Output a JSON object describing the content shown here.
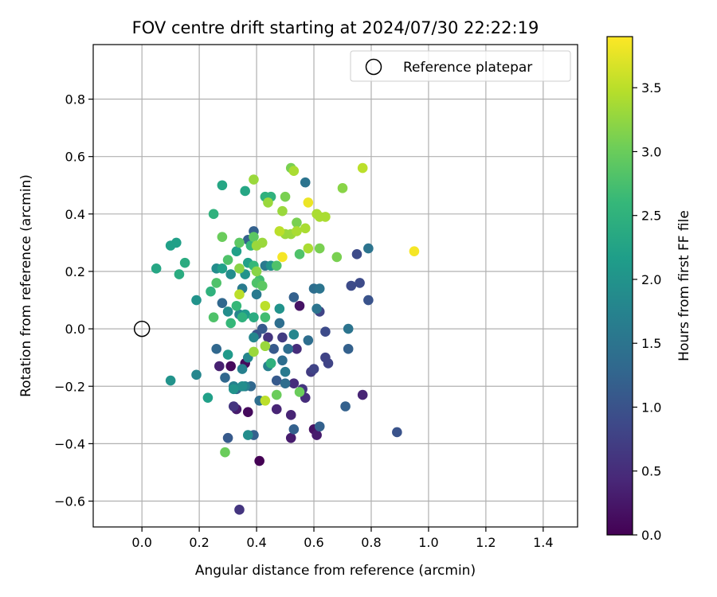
{
  "chart_data": {
    "type": "scatter",
    "title": "FOV centre drift starting at 2024/07/30 22:22:19",
    "xlabel": "Angular distance from reference (arcmin)",
    "ylabel": "Rotation from reference (arcmin)",
    "xlim": [
      -0.17,
      1.52
    ],
    "ylim": [
      -0.69,
      0.99
    ],
    "xticks": [
      "0.0",
      "0.2",
      "0.4",
      "0.6",
      "0.8",
      "1.0",
      "1.2",
      "1.4"
    ],
    "yticks": [
      "−0.6",
      "−0.4",
      "−0.2",
      "0.0",
      "0.2",
      "0.4",
      "0.6",
      "0.8"
    ],
    "xtick_values": [
      0.0,
      0.2,
      0.4,
      0.6,
      0.8,
      1.0,
      1.2,
      1.4
    ],
    "ytick_values": [
      -0.6,
      -0.4,
      -0.2,
      0.0,
      0.2,
      0.4,
      0.6,
      0.8
    ],
    "grid": true,
    "legend": {
      "label": "Reference platepar",
      "placement": "top-right"
    },
    "reference_point": {
      "x": 0.0,
      "y": 0.0
    },
    "colorbar": {
      "label": "Hours from first FF file",
      "range": [
        0.0,
        3.9
      ],
      "ticks": [
        "0.0",
        "0.5",
        "1.0",
        "1.5",
        "2.0",
        "2.5",
        "3.0",
        "3.5"
      ],
      "tick_values": [
        0.0,
        0.5,
        1.0,
        1.5,
        2.0,
        2.5,
        3.0,
        3.5
      ],
      "colormap": "viridis"
    },
    "series": [
      {
        "marker": "filled-circle",
        "points": [
          [
            0.41,
            -0.46,
            0.0
          ],
          [
            0.31,
            -0.13,
            0.1
          ],
          [
            0.36,
            -0.12,
            0.1
          ],
          [
            0.37,
            -0.29,
            0.1
          ],
          [
            0.55,
            0.08,
            0.2
          ],
          [
            0.6,
            -0.35,
            0.2
          ],
          [
            0.33,
            -0.28,
            0.3
          ],
          [
            0.52,
            -0.38,
            0.3
          ],
          [
            0.27,
            -0.13,
            0.35
          ],
          [
            0.61,
            -0.37,
            0.3
          ],
          [
            0.77,
            -0.23,
            0.4
          ],
          [
            0.47,
            -0.28,
            0.4
          ],
          [
            0.52,
            -0.3,
            0.4
          ],
          [
            0.53,
            -0.19,
            0.5
          ],
          [
            0.54,
            -0.07,
            0.5
          ],
          [
            0.44,
            -0.03,
            0.6
          ],
          [
            0.56,
            -0.21,
            0.6
          ],
          [
            0.57,
            -0.24,
            0.5
          ],
          [
            0.32,
            -0.27,
            0.6
          ],
          [
            0.34,
            -0.63,
            0.6
          ],
          [
            0.49,
            -0.03,
            0.7
          ],
          [
            0.59,
            -0.15,
            0.7
          ],
          [
            0.6,
            -0.14,
            0.8
          ],
          [
            0.64,
            -0.1,
            0.8
          ],
          [
            0.65,
            -0.12,
            0.8
          ],
          [
            0.62,
            0.06,
            0.8
          ],
          [
            0.64,
            -0.01,
            0.9
          ],
          [
            0.73,
            0.15,
            0.9
          ],
          [
            0.75,
            0.26,
            0.9
          ],
          [
            0.76,
            0.16,
            0.9
          ],
          [
            0.79,
            0.1,
            1.0
          ],
          [
            0.89,
            -0.36,
            1.0
          ],
          [
            0.4,
            -0.02,
            1.0
          ],
          [
            0.42,
            0.0,
            1.1
          ],
          [
            0.46,
            -0.07,
            1.1
          ],
          [
            0.47,
            -0.18,
            1.1
          ],
          [
            0.3,
            -0.38,
            1.1
          ],
          [
            0.53,
            0.11,
            1.2
          ],
          [
            0.72,
            -0.07,
            1.2
          ],
          [
            0.71,
            -0.27,
            1.2
          ],
          [
            0.62,
            -0.34,
            1.2
          ],
          [
            0.53,
            -0.35,
            1.2
          ],
          [
            0.39,
            0.34,
            1.2
          ],
          [
            0.37,
            0.31,
            1.2
          ],
          [
            0.39,
            -0.37,
            1.2
          ],
          [
            0.29,
            -0.17,
            1.3
          ],
          [
            0.26,
            -0.07,
            1.3
          ],
          [
            0.28,
            0.09,
            1.3
          ],
          [
            0.33,
            -0.21,
            1.3
          ],
          [
            0.38,
            -0.2,
            1.3
          ],
          [
            0.48,
            0.02,
            1.4
          ],
          [
            0.49,
            -0.11,
            1.4
          ],
          [
            0.51,
            -0.07,
            1.4
          ],
          [
            0.5,
            -0.19,
            1.4
          ],
          [
            0.45,
            -0.12,
            1.4
          ],
          [
            0.41,
            -0.25,
            1.4
          ],
          [
            0.58,
            -0.04,
            1.4
          ],
          [
            0.6,
            0.14,
            1.4
          ],
          [
            0.62,
            0.14,
            1.5
          ],
          [
            0.61,
            0.07,
            1.5
          ],
          [
            0.72,
            0.0,
            1.5
          ],
          [
            0.79,
            0.28,
            1.5
          ],
          [
            0.57,
            0.51,
            1.5
          ],
          [
            0.35,
            0.14,
            1.6
          ],
          [
            0.4,
            0.12,
            1.6
          ],
          [
            0.43,
            0.22,
            1.6
          ],
          [
            0.5,
            -0.15,
            1.6
          ],
          [
            0.44,
            -0.13,
            1.7
          ],
          [
            0.35,
            -0.14,
            1.7
          ],
          [
            0.36,
            -0.2,
            1.7
          ],
          [
            0.32,
            -0.2,
            1.7
          ],
          [
            0.19,
            -0.16,
            1.8
          ],
          [
            0.34,
            0.05,
            1.8
          ],
          [
            0.37,
            -0.1,
            1.8
          ],
          [
            0.39,
            -0.03,
            1.8
          ],
          [
            0.53,
            -0.02,
            1.8
          ],
          [
            0.3,
            0.06,
            1.9
          ],
          [
            0.31,
            0.19,
            1.9
          ],
          [
            0.26,
            0.21,
            1.9
          ],
          [
            0.35,
            -0.2,
            1.9
          ],
          [
            0.37,
            -0.37,
            1.9
          ],
          [
            0.32,
            -0.21,
            2.0
          ],
          [
            0.48,
            0.07,
            2.0
          ],
          [
            0.45,
            0.22,
            2.0
          ],
          [
            0.36,
            0.19,
            2.0
          ],
          [
            0.19,
            0.1,
            2.0
          ],
          [
            0.1,
            -0.18,
            2.0
          ],
          [
            0.3,
            -0.09,
            2.1
          ],
          [
            0.36,
            0.05,
            2.1
          ],
          [
            0.37,
            0.23,
            2.2
          ],
          [
            0.33,
            0.27,
            2.2
          ],
          [
            0.28,
            0.21,
            2.2
          ],
          [
            0.12,
            0.3,
            2.2
          ],
          [
            0.1,
            0.29,
            2.2
          ],
          [
            0.23,
            -0.24,
            2.2
          ],
          [
            0.36,
            0.48,
            2.3
          ],
          [
            0.28,
            0.5,
            2.3
          ],
          [
            0.05,
            0.21,
            2.3
          ],
          [
            0.13,
            0.19,
            2.4
          ],
          [
            0.15,
            0.23,
            2.4
          ],
          [
            0.39,
            0.04,
            2.4
          ],
          [
            0.45,
            -0.12,
            2.5
          ],
          [
            0.43,
            0.46,
            2.5
          ],
          [
            0.45,
            0.46,
            2.5
          ],
          [
            0.24,
            0.13,
            2.5
          ],
          [
            0.25,
            0.4,
            2.5
          ],
          [
            0.35,
            0.04,
            2.5
          ],
          [
            0.33,
            0.08,
            2.6
          ],
          [
            0.38,
            0.29,
            2.6
          ],
          [
            0.39,
            0.22,
            2.6
          ],
          [
            0.31,
            0.02,
            2.6
          ],
          [
            0.41,
            0.17,
            2.7
          ],
          [
            0.43,
            0.04,
            2.7
          ],
          [
            0.47,
            0.22,
            2.8
          ],
          [
            0.55,
            0.26,
            2.8
          ],
          [
            0.4,
            0.16,
            2.8
          ],
          [
            0.3,
            0.24,
            2.8
          ],
          [
            0.25,
            0.04,
            2.8
          ],
          [
            0.26,
            0.16,
            2.8
          ],
          [
            0.34,
            0.3,
            2.9
          ],
          [
            0.39,
            0.32,
            2.9
          ],
          [
            0.42,
            0.15,
            2.9
          ],
          [
            0.47,
            -0.23,
            3.0
          ],
          [
            0.55,
            -0.22,
            3.0
          ],
          [
            0.29,
            -0.43,
            3.0
          ],
          [
            0.28,
            0.32,
            3.0
          ],
          [
            0.52,
            0.56,
            3.1
          ],
          [
            0.54,
            0.37,
            3.1
          ],
          [
            0.5,
            0.46,
            3.1
          ],
          [
            0.62,
            0.28,
            3.1
          ],
          [
            0.68,
            0.25,
            3.1
          ],
          [
            0.7,
            0.49,
            3.2
          ],
          [
            0.4,
            0.2,
            3.2
          ],
          [
            0.34,
            0.21,
            3.2
          ],
          [
            0.39,
            -0.08,
            3.3
          ],
          [
            0.43,
            -0.06,
            3.3
          ],
          [
            0.39,
            0.52,
            3.3
          ],
          [
            0.42,
            0.3,
            3.3
          ],
          [
            0.44,
            0.44,
            3.3
          ],
          [
            0.49,
            0.41,
            3.3
          ],
          [
            0.5,
            0.33,
            3.3
          ],
          [
            0.52,
            0.33,
            3.3
          ],
          [
            0.54,
            0.34,
            3.4
          ],
          [
            0.57,
            0.35,
            3.4
          ],
          [
            0.58,
            0.28,
            3.4
          ],
          [
            0.61,
            0.4,
            3.4
          ],
          [
            0.64,
            0.39,
            3.4
          ],
          [
            0.62,
            0.39,
            3.4
          ],
          [
            0.53,
            0.55,
            3.4
          ],
          [
            0.48,
            0.34,
            3.5
          ],
          [
            0.77,
            0.56,
            3.5
          ],
          [
            0.43,
            -0.25,
            3.5
          ],
          [
            0.34,
            0.12,
            3.5
          ],
          [
            0.43,
            0.08,
            3.5
          ],
          [
            0.4,
            0.29,
            3.3
          ],
          [
            0.58,
            0.44,
            3.8
          ],
          [
            0.49,
            0.25,
            3.85
          ],
          [
            0.95,
            0.27,
            3.85
          ]
        ]
      }
    ]
  },
  "colors": {
    "viridis": [
      "#440154",
      "#482878",
      "#3e4989",
      "#31688e",
      "#26828e",
      "#1f9e89",
      "#35b779",
      "#6ece58",
      "#b5de2b",
      "#fde725"
    ],
    "grid": "#b0b0b0"
  }
}
